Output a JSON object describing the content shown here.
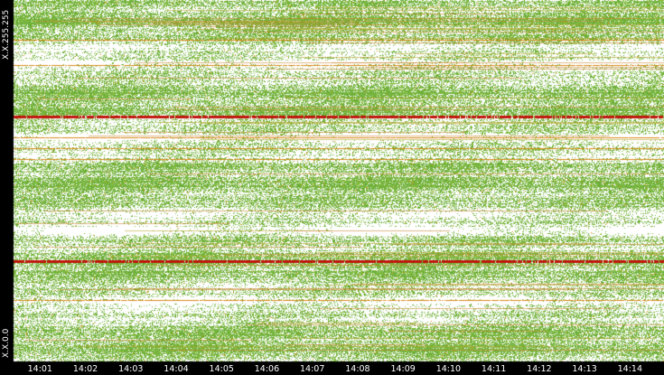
{
  "chart_data": {
    "type": "heatmap",
    "title": "",
    "xlabel": "",
    "ylabel": "",
    "y_axis": {
      "top_label": "X.X.255.255",
      "bottom_label": "X.X.0.0",
      "ylim": [
        0,
        65535
      ]
    },
    "x_axis": {
      "tick_labels": [
        "14:01",
        "14:02",
        "14:03",
        "14:04",
        "14:05",
        "14:06",
        "14:07",
        "14:08",
        "14:09",
        "14:10",
        "14:11",
        "14:12",
        "14:13",
        "14:14"
      ],
      "xlim": [
        "14:00:25",
        "14:14:45"
      ]
    },
    "palette": {
      "background": "#ffffff",
      "sparse": "#7ab648",
      "medium": "#8cbf2e",
      "dense": "#d98a1c",
      "very_dense": "#c0150c"
    },
    "dense_bands": [
      {
        "address_level": 0.68,
        "intensity": "very_dense"
      },
      {
        "address_level": 0.28,
        "intensity": "very_dense"
      },
      {
        "address_level": 0.62,
        "intensity": "dense"
      },
      {
        "address_level": 0.59,
        "intensity": "dense"
      },
      {
        "address_level": 0.56,
        "intensity": "dense"
      },
      {
        "address_level": 0.82,
        "intensity": "dense"
      },
      {
        "address_level": 0.17,
        "intensity": "dense"
      },
      {
        "address_level": 0.89,
        "intensity": "dense"
      }
    ]
  }
}
